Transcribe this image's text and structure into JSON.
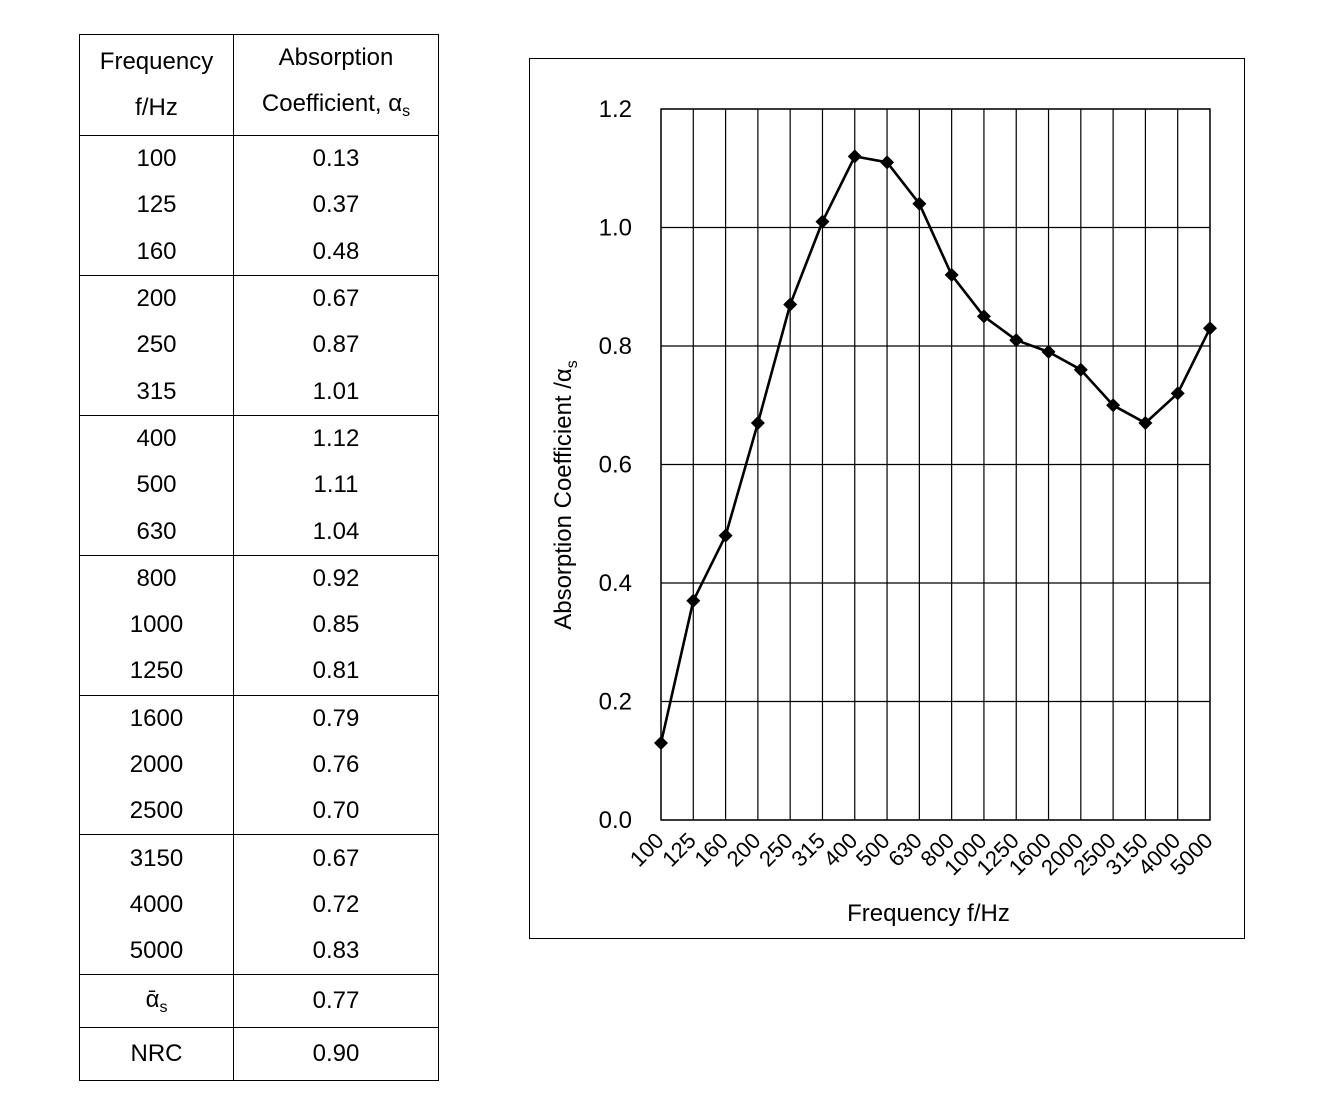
{
  "table": {
    "header_frequency_line1": "Frequency",
    "header_frequency_line2": "f/Hz",
    "header_coeff_line1": "Absorption",
    "header_coeff_line2": "Coefficient, α",
    "header_coeff_sub": "s",
    "frequencies": [
      "100",
      "125",
      "160",
      "200",
      "250",
      "315",
      "400",
      "500",
      "630",
      "800",
      "1000",
      "1250",
      "1600",
      "2000",
      "2500",
      "3150",
      "4000",
      "5000"
    ],
    "coefficients": [
      "0.13",
      "0.37",
      "0.48",
      "0.67",
      "0.87",
      "1.01",
      "1.12",
      "1.11",
      "1.04",
      "0.92",
      "0.85",
      "0.81",
      "0.79",
      "0.76",
      "0.70",
      "0.67",
      "0.72",
      "0.83"
    ],
    "mean_label": "ᾱ",
    "mean_label_sub": "s",
    "mean_value": "0.77",
    "nrc_label": "NRC",
    "nrc_value": "0.90"
  },
  "chart_data": {
    "type": "line",
    "categories": [
      "100",
      "125",
      "160",
      "200",
      "250",
      "315",
      "400",
      "500",
      "630",
      "800",
      "1000",
      "1250",
      "1600",
      "2000",
      "2500",
      "3150",
      "4000",
      "5000"
    ],
    "series": [
      {
        "values": [
          0.13,
          0.37,
          0.48,
          0.67,
          0.87,
          1.01,
          1.12,
          1.11,
          1.04,
          0.92,
          0.85,
          0.81,
          0.79,
          0.76,
          0.7,
          0.67,
          0.72,
          0.83
        ]
      }
    ],
    "title": "",
    "xlabel": "Frequency f/Hz",
    "ylabel": "Absorption Coefficient /α",
    "ylabel_sub": "s",
    "ylim": [
      0,
      1.2
    ],
    "yticks": [
      "0.0",
      "0.2",
      "0.4",
      "0.6",
      "0.8",
      "1.0",
      "1.2"
    ],
    "grid": true,
    "marker": "diamond",
    "line_color": "#000000",
    "grid_color": "#000000"
  }
}
